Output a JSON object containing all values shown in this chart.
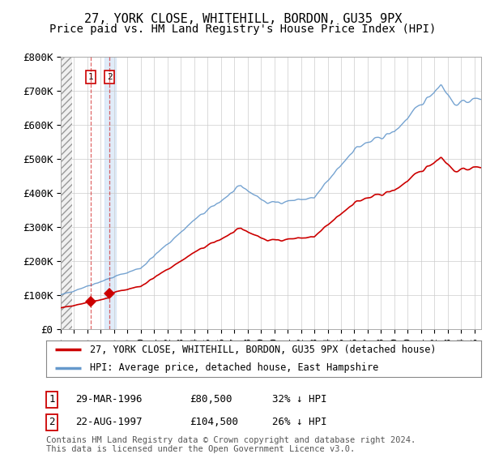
{
  "title": "27, YORK CLOSE, WHITEHILL, BORDON, GU35 9PX",
  "subtitle": "Price paid vs. HM Land Registry's House Price Index (HPI)",
  "ylim": [
    0,
    800000
  ],
  "yticks": [
    0,
    100000,
    200000,
    300000,
    400000,
    500000,
    600000,
    700000,
    800000
  ],
  "ytick_labels": [
    "£0",
    "£100K",
    "£200K",
    "£300K",
    "£400K",
    "£500K",
    "£600K",
    "£700K",
    "£800K"
  ],
  "xlim_start": 1994.0,
  "xlim_end": 2025.5,
  "purchase1_x": 1996.24,
  "purchase1_y": 80500,
  "purchase2_x": 1997.65,
  "purchase2_y": 104500,
  "legend_label_red": "27, YORK CLOSE, WHITEHILL, BORDON, GU35 9PX (detached house)",
  "legend_label_blue": "HPI: Average price, detached house, East Hampshire",
  "table_row1": [
    "1",
    "29-MAR-1996",
    "£80,500",
    "32% ↓ HPI"
  ],
  "table_row2": [
    "2",
    "22-AUG-1997",
    "£104,500",
    "26% ↓ HPI"
  ],
  "footer": "Contains HM Land Registry data © Crown copyright and database right 2024.\nThis data is licensed under the Open Government Licence v3.0.",
  "red_color": "#cc0000",
  "blue_color": "#6699cc",
  "grid_color": "#cccccc",
  "bg_color": "#ffffff",
  "title_fontsize": 11,
  "subtitle_fontsize": 10,
  "tick_fontsize": 9,
  "legend_fontsize": 9
}
